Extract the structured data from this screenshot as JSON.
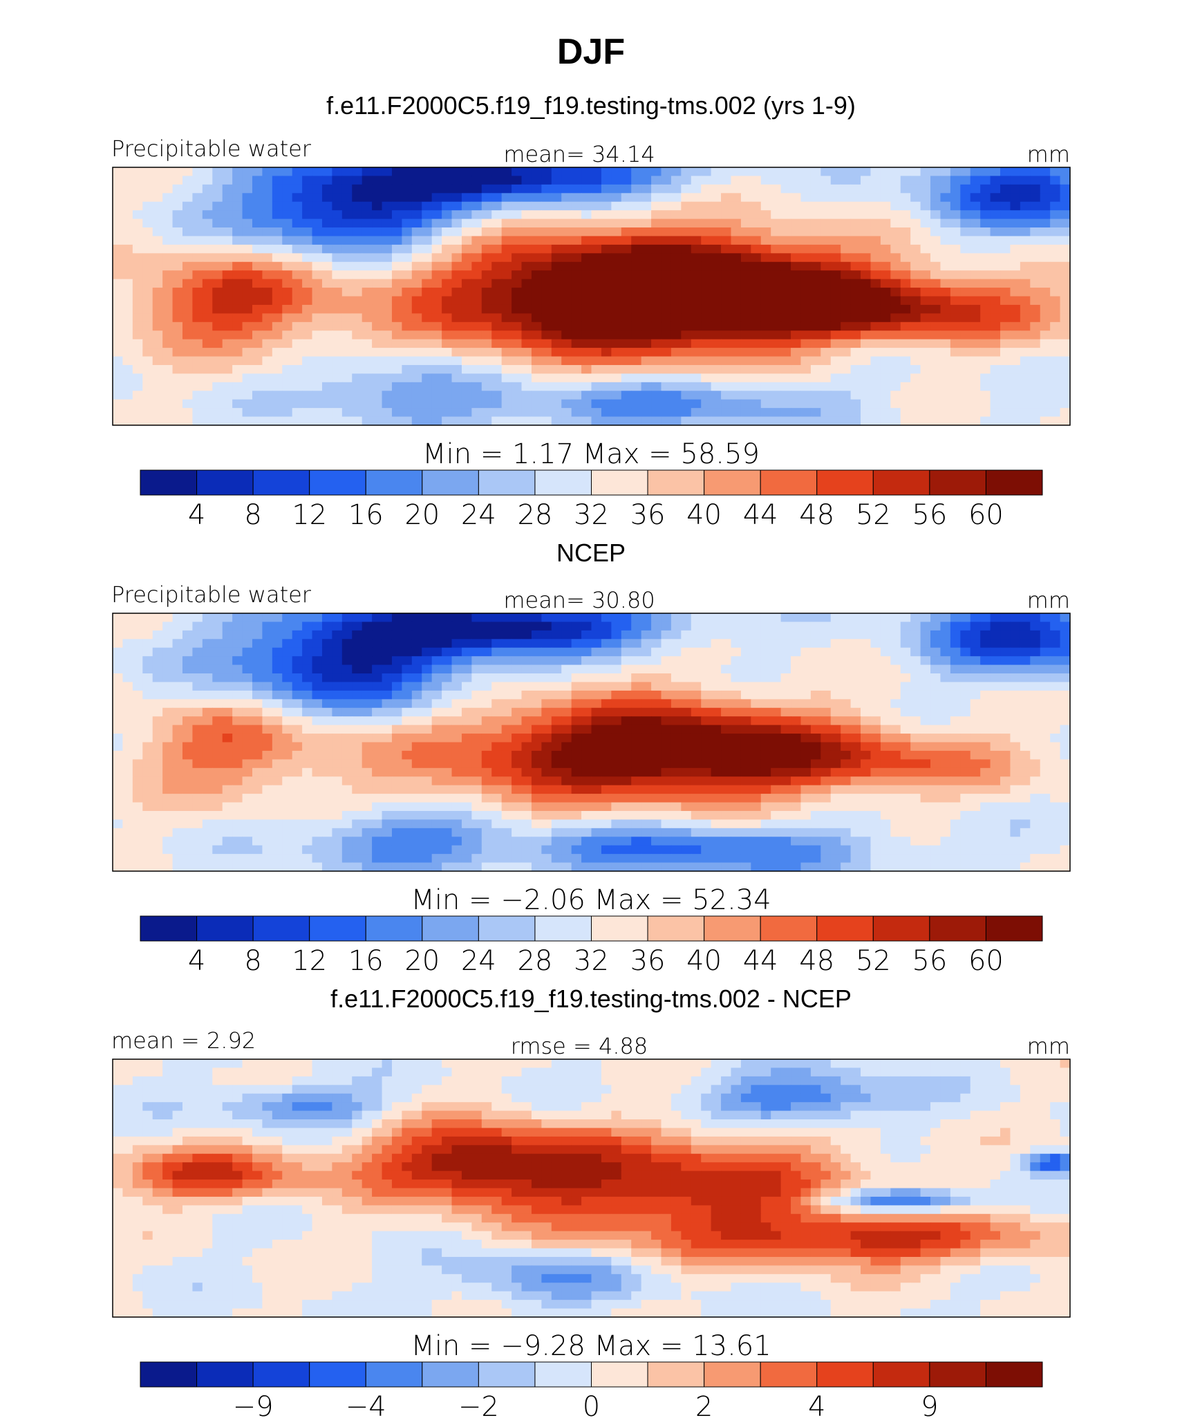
{
  "figure": {
    "title": "DJF",
    "colors": [
      "#0a1a8c",
      "#0b2cb8",
      "#1443d9",
      "#2461f0",
      "#4a86ef",
      "#7ba7f0",
      "#aac7f6",
      "#d6e5fb",
      "#fde6d8",
      "#fbc3a6",
      "#f79a72",
      "#f16a3f",
      "#e5421d",
      "#c42a0f",
      "#9d1a08",
      "#7d0e04"
    ]
  },
  "chart_data": [
    {
      "type": "heatmap",
      "subtitle": "f.e11.F2000C5.f19_f19.testing-tms.002 (yrs 1-9)",
      "left_label": "Precipitable water",
      "center_label": "mean=   34.14",
      "right_label": "mm",
      "minmax_label": "Min  =    1.17  Max  =   58.59",
      "min": 1.17,
      "max": 58.59,
      "mean": 34.14,
      "units": "mm",
      "levels": [
        "4",
        "8",
        "12",
        "16",
        "20",
        "24",
        "28",
        "32",
        "36",
        "40",
        "44",
        "48",
        "52",
        "56",
        "60"
      ]
    },
    {
      "type": "heatmap",
      "subtitle": "NCEP",
      "left_label": "Precipitable water",
      "center_label": "mean=   30.80",
      "right_label": "mm",
      "minmax_label": "Min  =   −2.06  Max  =   52.34",
      "min": -2.06,
      "max": 52.34,
      "mean": 30.8,
      "units": "mm",
      "levels": [
        "4",
        "8",
        "12",
        "16",
        "20",
        "24",
        "28",
        "32",
        "36",
        "40",
        "44",
        "48",
        "52",
        "56",
        "60"
      ]
    },
    {
      "type": "heatmap",
      "subtitle": "f.e11.F2000C5.f19_f19.testing-tms.002 - NCEP",
      "left_label": "mean  =    2.92",
      "center_label": "rmse  =    4.88",
      "right_label": "mm",
      "minmax_label": "Min  =   −9.28  Max  =   13.61",
      "min": -9.28,
      "max": 13.61,
      "mean": 2.92,
      "rmse": 4.88,
      "units": "mm",
      "levels": [
        "",
        "−9",
        "",
        "−4",
        "",
        "−2",
        "",
        "0",
        "",
        "2",
        "",
        "4",
        "",
        "9",
        ""
      ]
    }
  ]
}
